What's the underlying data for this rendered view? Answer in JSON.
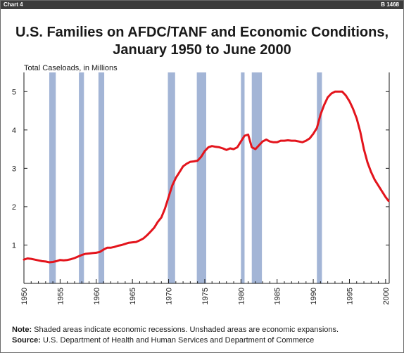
{
  "header": {
    "chart_label": "Chart 4",
    "code": "B 1468"
  },
  "notes": {
    "note_label": "Note:",
    "note_text": "Shaded areas indicate economic recessions. Unshaded areas are economic expansions.",
    "source_label": "Source:",
    "source_text": "U.S. Department of Health and Human Services and Department of Commerce"
  },
  "colors": {
    "line": "#e3141c",
    "recession": "#a3b5d6",
    "axis": "#1a1a1a"
  },
  "chart_data": {
    "type": "line",
    "title_line1": "U.S. Families on AFDC/TANF and Economic Conditions,",
    "title_line2": "January 1950 to June 2000",
    "ylabel": "Total Caseloads, in Millions",
    "xlabel": "",
    "xlim": [
      1950,
      2000.5
    ],
    "ylim": [
      0,
      5.5
    ],
    "x_ticks": [
      1950,
      1955,
      1960,
      1965,
      1970,
      1975,
      1980,
      1985,
      1990,
      1995,
      2000
    ],
    "y_ticks": [
      1,
      2,
      3,
      4,
      5
    ],
    "recessions": [
      [
        1953.5,
        1954.4
      ],
      [
        1957.6,
        1958.3
      ],
      [
        1960.3,
        1961.1
      ],
      [
        1969.9,
        1970.9
      ],
      [
        1973.9,
        1975.2
      ],
      [
        1980.0,
        1980.5
      ],
      [
        1981.5,
        1982.9
      ],
      [
        1990.5,
        1991.2
      ]
    ],
    "series": [
      {
        "x": [
          1950.0,
          1950.5,
          1951.0,
          1951.5,
          1952.0,
          1952.5,
          1953.0,
          1953.5,
          1954.0,
          1954.5,
          1955.0,
          1955.5,
          1956.0,
          1956.5,
          1957.0,
          1957.5,
          1958.0,
          1958.5,
          1959.0,
          1959.5,
          1960.0,
          1960.5,
          1961.0,
          1961.5,
          1962.0,
          1962.5,
          1963.0,
          1963.5,
          1964.0,
          1964.5,
          1965.0,
          1965.5,
          1966.0,
          1966.5,
          1967.0,
          1967.5,
          1968.0,
          1968.5,
          1969.0,
          1969.5,
          1970.0,
          1970.5,
          1971.0,
          1971.5,
          1972.0,
          1972.5,
          1973.0,
          1973.5,
          1974.0,
          1974.5,
          1975.0,
          1975.5,
          1976.0,
          1976.5,
          1977.0,
          1977.5,
          1978.0,
          1978.5,
          1979.0,
          1979.5,
          1980.0,
          1980.5,
          1981.0,
          1981.5,
          1982.0,
          1982.5,
          1983.0,
          1983.5,
          1984.0,
          1984.5,
          1985.0,
          1985.5,
          1986.0,
          1986.5,
          1987.0,
          1987.5,
          1988.0,
          1988.5,
          1989.0,
          1989.5,
          1990.0,
          1990.5,
          1991.0,
          1991.5,
          1992.0,
          1992.5,
          1993.0,
          1993.5,
          1994.0,
          1994.5,
          1995.0,
          1995.5,
          1996.0,
          1996.5,
          1997.0,
          1997.5,
          1998.0,
          1998.5,
          1999.0,
          1999.5,
          2000.0,
          2000.4
        ],
        "y": [
          0.62,
          0.65,
          0.64,
          0.62,
          0.6,
          0.58,
          0.57,
          0.55,
          0.56,
          0.58,
          0.61,
          0.6,
          0.61,
          0.63,
          0.66,
          0.7,
          0.74,
          0.77,
          0.78,
          0.79,
          0.8,
          0.82,
          0.88,
          0.93,
          0.93,
          0.95,
          0.98,
          1.0,
          1.03,
          1.06,
          1.07,
          1.08,
          1.12,
          1.17,
          1.25,
          1.35,
          1.45,
          1.6,
          1.72,
          1.95,
          2.25,
          2.55,
          2.75,
          2.9,
          3.05,
          3.12,
          3.17,
          3.18,
          3.2,
          3.3,
          3.45,
          3.55,
          3.58,
          3.56,
          3.55,
          3.52,
          3.48,
          3.52,
          3.5,
          3.55,
          3.7,
          3.85,
          3.88,
          3.55,
          3.5,
          3.6,
          3.7,
          3.75,
          3.7,
          3.68,
          3.68,
          3.72,
          3.72,
          3.73,
          3.72,
          3.72,
          3.7,
          3.68,
          3.72,
          3.78,
          3.9,
          4.05,
          4.4,
          4.65,
          4.85,
          4.95,
          5.0,
          5.0,
          5.0,
          4.9,
          4.75,
          4.55,
          4.3,
          3.95,
          3.5,
          3.15,
          2.9,
          2.7,
          2.55,
          2.4,
          2.25,
          2.15
        ]
      }
    ]
  }
}
